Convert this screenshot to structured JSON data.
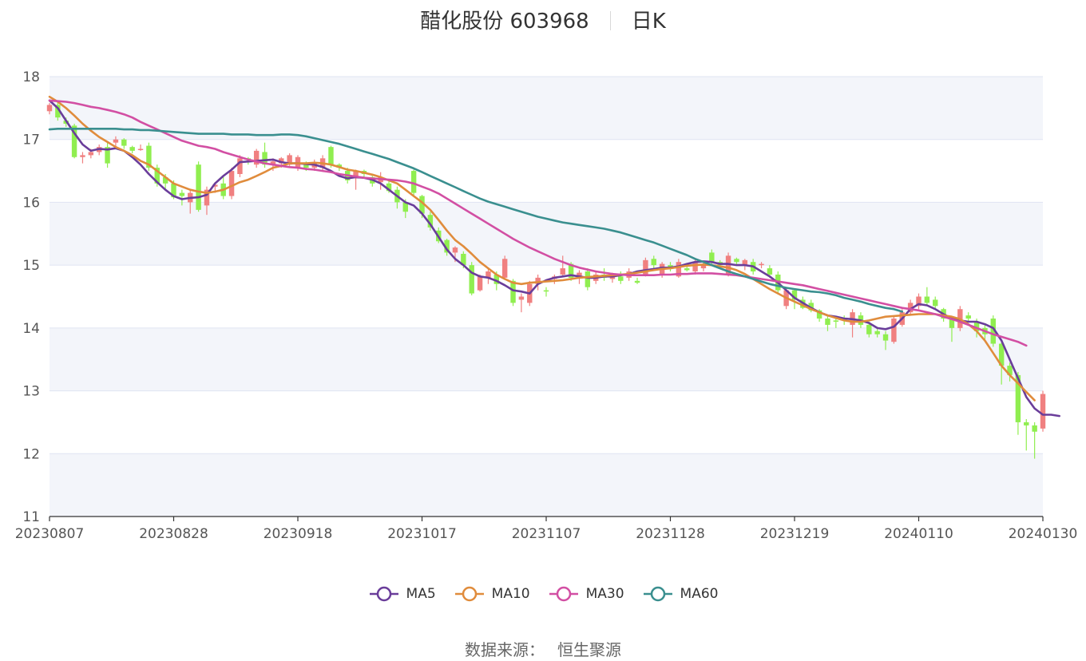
{
  "header": {
    "title": "醋化股份 603968",
    "period": "日K"
  },
  "footer": {
    "source_label": "数据来源：",
    "source_name": "恒生聚源"
  },
  "colors": {
    "up": "#f08080",
    "down": "#90ee50",
    "ma5": "#6a3d9a",
    "ma10": "#e08c3c",
    "ma30": "#d24fa3",
    "ma60": "#3a8f8f",
    "band": "#f3f5fa",
    "grid": "#dfe4f2"
  },
  "chart_data": {
    "type": "candlestick",
    "ylim": [
      11,
      18
    ],
    "yticks": [
      "11",
      "12",
      "13",
      "14",
      "15",
      "16",
      "17",
      "18"
    ],
    "xticks": [
      "20230807",
      "20230828",
      "20230918",
      "20231017",
      "20231107",
      "20231128",
      "20231219",
      "20240110",
      "20240130"
    ],
    "xtick_index": [
      0,
      15,
      30,
      45,
      60,
      75,
      90,
      105,
      120
    ],
    "grid": true,
    "legend_position": "bottom",
    "candles_ohlc": [
      [
        17.45,
        17.58,
        17.4,
        17.55
      ],
      [
        17.55,
        17.6,
        17.3,
        17.35
      ],
      [
        17.3,
        17.35,
        17.2,
        17.25
      ],
      [
        17.22,
        17.25,
        16.7,
        16.72
      ],
      [
        16.72,
        16.8,
        16.62,
        16.75
      ],
      [
        16.75,
        16.85,
        16.7,
        16.8
      ],
      [
        16.8,
        16.92,
        16.75,
        16.88
      ],
      [
        16.88,
        16.95,
        16.55,
        16.62
      ],
      [
        16.95,
        17.05,
        16.88,
        17.0
      ],
      [
        17.0,
        17.02,
        16.85,
        16.9
      ],
      [
        16.88,
        16.9,
        16.78,
        16.82
      ],
      [
        16.85,
        16.92,
        16.82,
        16.85
      ],
      [
        16.9,
        16.95,
        16.5,
        16.55
      ],
      [
        16.55,
        16.6,
        16.25,
        16.3
      ],
      [
        16.4,
        16.45,
        16.2,
        16.3
      ],
      [
        16.3,
        16.35,
        16.05,
        16.08
      ],
      [
        16.15,
        16.2,
        15.95,
        16.1
      ],
      [
        16.0,
        16.2,
        15.82,
        16.15
      ],
      [
        16.6,
        16.65,
        15.85,
        15.88
      ],
      [
        15.95,
        16.25,
        15.8,
        16.2
      ],
      [
        16.25,
        16.32,
        16.15,
        16.28
      ],
      [
        16.3,
        16.4,
        16.05,
        16.1
      ],
      [
        16.1,
        16.55,
        16.05,
        16.5
      ],
      [
        16.45,
        16.75,
        16.4,
        16.7
      ],
      [
        16.7,
        16.72,
        16.6,
        16.68
      ],
      [
        16.6,
        16.85,
        16.55,
        16.82
      ],
      [
        16.8,
        16.95,
        16.55,
        16.6
      ],
      [
        16.6,
        16.7,
        16.5,
        16.65
      ],
      [
        16.62,
        16.72,
        16.55,
        16.7
      ],
      [
        16.6,
        16.78,
        16.58,
        16.75
      ],
      [
        16.55,
        16.75,
        16.5,
        16.72
      ],
      [
        16.62,
        16.65,
        16.5,
        16.55
      ],
      [
        16.55,
        16.68,
        16.5,
        16.62
      ],
      [
        16.55,
        16.75,
        16.5,
        16.7
      ],
      [
        16.88,
        16.9,
        16.55,
        16.6
      ],
      [
        16.6,
        16.62,
        16.5,
        16.55
      ],
      [
        16.5,
        16.55,
        16.3,
        16.35
      ],
      [
        16.38,
        16.52,
        16.2,
        16.5
      ],
      [
        16.5,
        16.52,
        16.4,
        16.45
      ],
      [
        16.4,
        16.42,
        16.25,
        16.3
      ],
      [
        16.32,
        16.48,
        16.2,
        16.4
      ],
      [
        16.3,
        16.35,
        16.15,
        16.18
      ],
      [
        16.2,
        16.25,
        15.9,
        16.0
      ],
      [
        16.0,
        16.05,
        15.75,
        15.85
      ],
      [
        16.5,
        16.52,
        16.1,
        16.15
      ],
      [
        16.1,
        16.12,
        15.75,
        15.82
      ],
      [
        15.8,
        15.85,
        15.55,
        15.6
      ],
      [
        15.55,
        15.6,
        15.35,
        15.38
      ],
      [
        15.4,
        15.42,
        15.15,
        15.2
      ],
      [
        15.2,
        15.3,
        15.05,
        15.28
      ],
      [
        15.18,
        15.22,
        14.95,
        15.0
      ],
      [
        15.0,
        15.05,
        14.52,
        14.55
      ],
      [
        14.6,
        14.85,
        14.58,
        14.82
      ],
      [
        14.8,
        14.95,
        14.7,
        14.9
      ],
      [
        14.85,
        14.9,
        14.6,
        14.7
      ],
      [
        14.8,
        15.15,
        14.78,
        15.1
      ],
      [
        14.75,
        14.78,
        14.35,
        14.4
      ],
      [
        14.45,
        14.55,
        14.25,
        14.5
      ],
      [
        14.4,
        14.75,
        14.35,
        14.7
      ],
      [
        14.7,
        14.85,
        14.6,
        14.8
      ],
      [
        14.6,
        14.65,
        14.5,
        14.58
      ],
      [
        14.78,
        14.85,
        14.7,
        14.82
      ],
      [
        14.85,
        15.15,
        14.82,
        14.95
      ],
      [
        15.02,
        15.05,
        14.75,
        14.8
      ],
      [
        14.8,
        14.92,
        14.7,
        14.88
      ],
      [
        14.9,
        14.95,
        14.6,
        14.65
      ],
      [
        14.75,
        14.9,
        14.7,
        14.85
      ],
      [
        14.85,
        14.95,
        14.75,
        14.8
      ],
      [
        14.78,
        14.88,
        14.72,
        14.85
      ],
      [
        14.82,
        14.9,
        14.7,
        14.75
      ],
      [
        14.8,
        14.95,
        14.75,
        14.9
      ],
      [
        14.75,
        14.8,
        14.7,
        14.72
      ],
      [
        14.85,
        15.12,
        14.82,
        15.08
      ],
      [
        15.1,
        15.15,
        14.95,
        15.0
      ],
      [
        14.85,
        15.05,
        14.8,
        15.02
      ],
      [
        15.0,
        15.05,
        14.9,
        14.95
      ],
      [
        14.82,
        15.1,
        14.8,
        15.05
      ],
      [
        14.95,
        15.0,
        14.9,
        14.92
      ],
      [
        14.9,
        15.1,
        14.85,
        15.05
      ],
      [
        14.95,
        15.05,
        14.9,
        15.0
      ],
      [
        15.2,
        15.25,
        15.0,
        15.05
      ],
      [
        15.05,
        15.08,
        14.95,
        15.0
      ],
      [
        14.85,
        15.2,
        14.82,
        15.15
      ],
      [
        15.1,
        15.12,
        15.0,
        15.05
      ],
      [
        15.0,
        15.1,
        14.92,
        15.08
      ],
      [
        15.05,
        15.1,
        14.85,
        14.9
      ],
      [
        15.0,
        15.05,
        14.95,
        15.02
      ],
      [
        14.95,
        15.0,
        14.8,
        14.85
      ],
      [
        14.85,
        14.9,
        14.55,
        14.6
      ],
      [
        14.35,
        14.65,
        14.3,
        14.6
      ],
      [
        14.6,
        14.62,
        14.3,
        14.45
      ],
      [
        14.45,
        14.5,
        14.3,
        14.32
      ],
      [
        14.4,
        14.45,
        14.25,
        14.28
      ],
      [
        14.28,
        14.3,
        14.1,
        14.15
      ],
      [
        14.15,
        14.2,
        13.95,
        14.05
      ],
      [
        14.12,
        14.18,
        14.0,
        14.1
      ],
      [
        14.15,
        14.2,
        14.05,
        14.12
      ],
      [
        14.05,
        14.3,
        13.85,
        14.25
      ],
      [
        14.2,
        14.25,
        14.0,
        14.05
      ],
      [
        14.05,
        14.1,
        13.85,
        13.9
      ],
      [
        13.95,
        14.0,
        13.85,
        13.9
      ],
      [
        13.9,
        13.95,
        13.65,
        13.8
      ],
      [
        13.78,
        14.2,
        13.75,
        14.15
      ],
      [
        14.05,
        14.3,
        14.02,
        14.25
      ],
      [
        14.25,
        14.45,
        14.2,
        14.4
      ],
      [
        14.35,
        14.55,
        14.3,
        14.5
      ],
      [
        14.5,
        14.65,
        14.35,
        14.4
      ],
      [
        14.45,
        14.5,
        14.3,
        14.35
      ],
      [
        14.3,
        14.32,
        14.1,
        14.15
      ],
      [
        14.15,
        14.18,
        13.78,
        14.0
      ],
      [
        14.0,
        14.35,
        13.95,
        14.3
      ],
      [
        14.2,
        14.25,
        14.1,
        14.15
      ],
      [
        14.1,
        14.15,
        13.85,
        13.95
      ],
      [
        14.0,
        14.05,
        13.82,
        13.9
      ],
      [
        14.15,
        14.2,
        13.7,
        13.75
      ],
      [
        13.75,
        13.8,
        13.1,
        13.4
      ],
      [
        13.4,
        13.45,
        13.15,
        13.25
      ],
      [
        13.25,
        13.3,
        12.3,
        12.5
      ],
      [
        12.5,
        12.55,
        12.05,
        12.45
      ],
      [
        12.45,
        12.5,
        11.92,
        12.35
      ],
      [
        12.4,
        13.0,
        12.35,
        12.95
      ]
    ],
    "series": [
      {
        "name": "MA5",
        "values": [
          17.62,
          17.5,
          17.3,
          17.1,
          16.92,
          16.82,
          16.85,
          16.84,
          16.86,
          16.82,
          16.72,
          16.6,
          16.45,
          16.32,
          16.2,
          16.1,
          16.05,
          16.07,
          16.08,
          16.12,
          16.3,
          16.42,
          16.52,
          16.64,
          16.65,
          16.66,
          16.67,
          16.68,
          16.64,
          16.62,
          16.62,
          16.61,
          16.6,
          16.56,
          16.5,
          16.42,
          16.38,
          16.4,
          16.39,
          16.36,
          16.3,
          16.2,
          16.1,
          16.0,
          15.95,
          15.82,
          15.65,
          15.45,
          15.25,
          15.1,
          15.0,
          14.88,
          14.82,
          14.8,
          14.75,
          14.68,
          14.6,
          14.58,
          14.55,
          14.7,
          14.76,
          14.8,
          14.82,
          14.84,
          14.82,
          14.8,
          14.8,
          14.82,
          14.82,
          14.84,
          14.86,
          14.9,
          14.92,
          14.94,
          14.96,
          14.96,
          14.98,
          15.02,
          15.05,
          15.06,
          15.05,
          15.02,
          15.02,
          15.0,
          15.0,
          14.98,
          14.9,
          14.82,
          14.72,
          14.6,
          14.48,
          14.4,
          14.32,
          14.25,
          14.2,
          14.18,
          14.15,
          14.14,
          14.12,
          14.08,
          14.0,
          13.98,
          14.02,
          14.15,
          14.3,
          14.38,
          14.36,
          14.3,
          14.22,
          14.15,
          14.12,
          14.1,
          14.1,
          14.06,
          14.0,
          13.8,
          13.5,
          13.2,
          12.9,
          12.72,
          12.62,
          12.62,
          12.6
        ]
      },
      {
        "name": "MA10",
        "values": [
          17.68,
          17.6,
          17.5,
          17.38,
          17.25,
          17.14,
          17.04,
          16.96,
          16.88,
          16.82,
          16.75,
          16.66,
          16.6,
          16.5,
          16.4,
          16.3,
          16.25,
          16.2,
          16.17,
          16.15,
          16.17,
          16.2,
          16.26,
          16.32,
          16.36,
          16.42,
          16.48,
          16.55,
          16.58,
          16.62,
          16.62,
          16.62,
          16.63,
          16.62,
          16.6,
          16.56,
          16.52,
          16.5,
          16.47,
          16.44,
          16.4,
          16.35,
          16.3,
          16.2,
          16.1,
          16.0,
          15.88,
          15.72,
          15.55,
          15.4,
          15.3,
          15.18,
          15.05,
          14.95,
          14.85,
          14.78,
          14.72,
          14.7,
          14.72,
          14.73,
          14.74,
          14.75,
          14.76,
          14.78,
          14.8,
          14.81,
          14.82,
          14.83,
          14.84,
          14.85,
          14.86,
          14.88,
          14.9,
          14.92,
          14.94,
          14.95,
          14.97,
          14.99,
          15.0,
          15.01,
          15.0,
          14.98,
          14.96,
          14.92,
          14.86,
          14.78,
          14.7,
          14.62,
          14.55,
          14.48,
          14.42,
          14.36,
          14.3,
          14.25,
          14.2,
          14.16,
          14.12,
          14.1,
          14.1,
          14.12,
          14.15,
          14.18,
          14.19,
          14.2,
          14.21,
          14.22,
          14.22,
          14.22,
          14.2,
          14.18,
          14.14,
          14.06,
          13.95,
          13.8,
          13.6,
          13.4,
          13.25,
          13.12,
          12.98,
          12.85
        ]
      },
      {
        "name": "MA30",
        "values": [
          17.62,
          17.61,
          17.6,
          17.58,
          17.55,
          17.52,
          17.5,
          17.47,
          17.44,
          17.4,
          17.35,
          17.28,
          17.22,
          17.16,
          17.1,
          17.04,
          16.98,
          16.94,
          16.9,
          16.88,
          16.85,
          16.8,
          16.76,
          16.72,
          16.68,
          16.65,
          16.62,
          16.6,
          16.58,
          16.56,
          16.55,
          16.53,
          16.52,
          16.5,
          16.48,
          16.45,
          16.43,
          16.41,
          16.39,
          16.38,
          16.37,
          16.36,
          16.35,
          16.33,
          16.3,
          16.25,
          16.2,
          16.14,
          16.06,
          15.98,
          15.9,
          15.82,
          15.74,
          15.66,
          15.58,
          15.5,
          15.42,
          15.35,
          15.28,
          15.22,
          15.16,
          15.1,
          15.05,
          15.0,
          14.96,
          14.93,
          14.9,
          14.88,
          14.86,
          14.85,
          14.84,
          14.84,
          14.84,
          14.84,
          14.85,
          14.85,
          14.86,
          14.86,
          14.87,
          14.87,
          14.87,
          14.86,
          14.85,
          14.84,
          14.82,
          14.8,
          14.78,
          14.76,
          14.74,
          14.72,
          14.7,
          14.68,
          14.65,
          14.62,
          14.59,
          14.56,
          14.53,
          14.5,
          14.47,
          14.44,
          14.41,
          14.38,
          14.35,
          14.32,
          14.3,
          14.28,
          14.25,
          14.22,
          14.18,
          14.14,
          14.1,
          14.05,
          14.0,
          13.95,
          13.9,
          13.86,
          13.82,
          13.78,
          13.72
        ]
      },
      {
        "name": "MA60",
        "values": [
          17.16,
          17.17,
          17.17,
          17.17,
          17.17,
          17.17,
          17.17,
          17.17,
          17.17,
          17.16,
          17.16,
          17.15,
          17.15,
          17.14,
          17.13,
          17.12,
          17.11,
          17.1,
          17.09,
          17.09,
          17.09,
          17.09,
          17.08,
          17.08,
          17.08,
          17.07,
          17.07,
          17.07,
          17.08,
          17.08,
          17.07,
          17.05,
          17.02,
          16.99,
          16.96,
          16.93,
          16.89,
          16.85,
          16.81,
          16.77,
          16.73,
          16.69,
          16.64,
          16.59,
          16.54,
          16.48,
          16.42,
          16.36,
          16.3,
          16.24,
          16.18,
          16.12,
          16.06,
          16.01,
          15.97,
          15.93,
          15.89,
          15.85,
          15.81,
          15.77,
          15.74,
          15.71,
          15.68,
          15.66,
          15.64,
          15.62,
          15.6,
          15.58,
          15.55,
          15.52,
          15.48,
          15.44,
          15.4,
          15.36,
          15.31,
          15.26,
          15.21,
          15.16,
          15.1,
          15.05,
          15.0,
          14.95,
          14.9,
          14.86,
          14.82,
          14.78,
          14.74,
          14.7,
          14.67,
          14.64,
          14.62,
          14.6,
          14.58,
          14.57,
          14.55,
          14.52,
          14.48,
          14.45,
          14.42,
          14.38,
          14.35,
          14.32,
          14.3,
          14.26
        ]
      }
    ]
  }
}
